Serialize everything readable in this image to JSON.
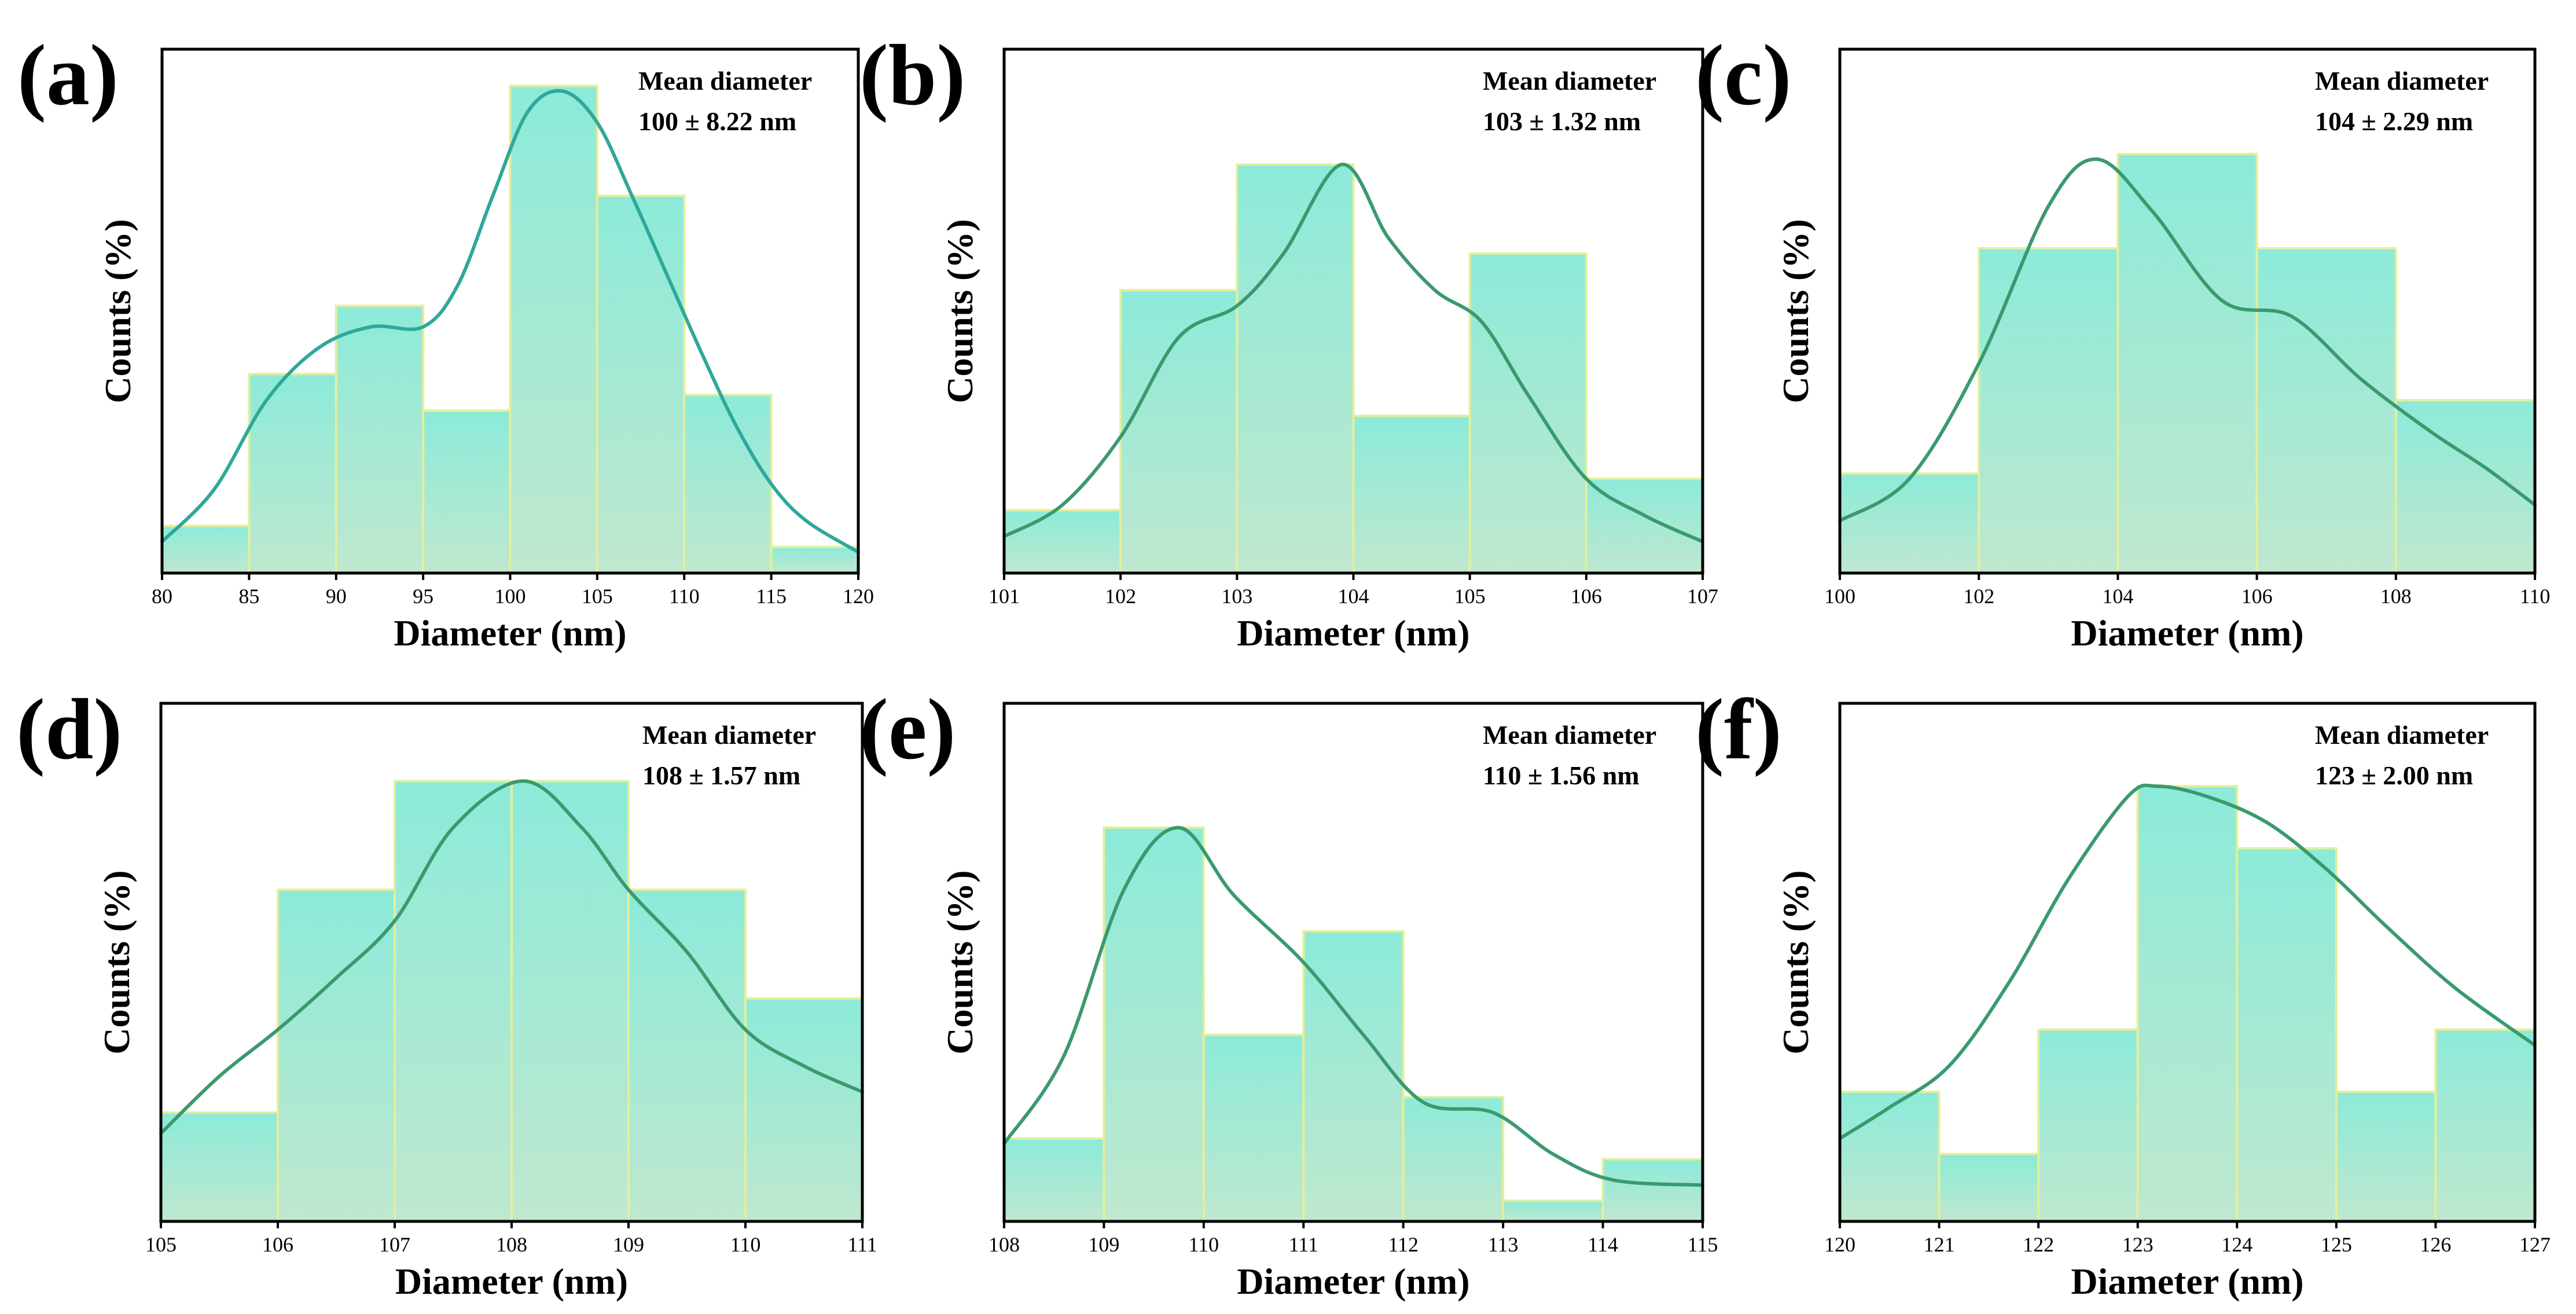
{
  "figure": {
    "bar_gradient_top": "#8cead9",
    "bar_gradient_bottom": "#bfe8cf",
    "bar_edge_color": "#e3ef9a",
    "frame_color": "#000000"
  },
  "chart_data": [
    {
      "type": "bar",
      "panel_label": "(a)",
      "xlabel": "Diameter (nm)",
      "ylabel": "Counts (%)",
      "annotation_title": "Mean diameter",
      "annotation_value": "100 ± 8.22 nm",
      "bin_edges": [
        80,
        85,
        90,
        95,
        100,
        105,
        110,
        115,
        120
      ],
      "values": [
        9,
        38,
        51,
        31,
        93,
        72,
        34,
        5
      ],
      "xlim": [
        80,
        120
      ],
      "ylim": [
        0,
        100
      ],
      "xticks": [
        "80",
        "85",
        "90",
        "95",
        "100",
        "105",
        "110",
        "115",
        "120"
      ],
      "curve": {
        "color": "#2ea89a",
        "x": [
          80,
          83,
          86,
          89,
          92,
          95,
          97,
          99,
          101,
          103,
          105,
          107,
          109,
          111,
          113,
          115,
          117,
          120
        ],
        "y": [
          6,
          16,
          33,
          43,
          47,
          47,
          55,
          72,
          88,
          92,
          86,
          72,
          57,
          42,
          28,
          17,
          10,
          4
        ]
      }
    },
    {
      "type": "bar",
      "panel_label": "(b)",
      "xlabel": "Diameter (nm)",
      "ylabel": "Counts (%)",
      "annotation_title": "Mean diameter",
      "annotation_value": "103 ± 1.32 nm",
      "bin_edges": [
        101,
        102,
        103,
        104,
        105,
        106,
        107
      ],
      "values": [
        12,
        54,
        78,
        30,
        61,
        18
      ],
      "xlim": [
        101,
        107
      ],
      "ylim": [
        0,
        100
      ],
      "xticks": [
        "101",
        "102",
        "103",
        "104",
        "105",
        "106",
        "107"
      ],
      "curve": {
        "color": "#3a9a6e",
        "x": [
          101,
          101.5,
          102,
          102.5,
          103,
          103.4,
          103.9,
          104.3,
          104.7,
          105.1,
          105.5,
          106,
          106.5,
          107
        ],
        "y": [
          7,
          13,
          26,
          45,
          51,
          61,
          78,
          64,
          54,
          48,
          34,
          18,
          11,
          6
        ]
      }
    },
    {
      "type": "bar",
      "panel_label": "(c)",
      "xlabel": "Diameter (nm)",
      "ylabel": "Counts (%)",
      "annotation_title": "Mean diameter",
      "annotation_value": "104 ± 2.29 nm",
      "bin_edges": [
        100,
        102,
        104,
        106,
        108,
        110
      ],
      "values": [
        19,
        62,
        80,
        62,
        33
      ],
      "xlim": [
        100,
        110
      ],
      "ylim": [
        0,
        100
      ],
      "xticks": [
        "100",
        "102",
        "104",
        "106",
        "108",
        "110"
      ],
      "curve": {
        "color": "#3a9a6e",
        "x": [
          100,
          101,
          102,
          103,
          103.7,
          104.5,
          105.5,
          106.5,
          107.5,
          108.5,
          109.3,
          110
        ],
        "y": [
          10,
          18,
          40,
          70,
          79,
          69,
          52,
          49,
          37,
          27,
          20,
          13
        ]
      }
    },
    {
      "type": "bar",
      "panel_label": "(d)",
      "xlabel": "Diameter (nm)",
      "ylabel": "Counts (%)",
      "annotation_title": "Mean diameter",
      "annotation_value": "108 ± 1.57 nm",
      "bin_edges": [
        105,
        106,
        107,
        108,
        109,
        110,
        111
      ],
      "values": [
        21,
        64,
        85,
        85,
        64,
        43
      ],
      "xlim": [
        105,
        111
      ],
      "ylim": [
        0,
        100
      ],
      "xticks": [
        "105",
        "106",
        "107",
        "108",
        "109",
        "110",
        "111"
      ],
      "curve": {
        "color": "#3a9a6e",
        "x": [
          105,
          105.5,
          106,
          106.5,
          107,
          107.5,
          108.1,
          108.6,
          109,
          109.5,
          110,
          110.5,
          111
        ],
        "y": [
          17,
          28,
          37,
          47,
          58,
          76,
          85,
          76,
          64,
          52,
          37,
          30,
          25
        ]
      }
    },
    {
      "type": "bar",
      "panel_label": "(e)",
      "xlabel": "Diameter (nm)",
      "ylabel": "Counts (%)",
      "annotation_title": "Mean diameter",
      "annotation_value": "110 ± 1.56 nm",
      "bin_edges": [
        108,
        109,
        110,
        111,
        112,
        113,
        114,
        115
      ],
      "values": [
        16,
        76,
        36,
        56,
        24,
        4,
        12
      ],
      "xlim": [
        108,
        115
      ],
      "ylim": [
        0,
        100
      ],
      "xticks": [
        "108",
        "109",
        "110",
        "111",
        "112",
        "113",
        "114",
        "115"
      ],
      "curve": {
        "color": "#3a9a6e",
        "x": [
          108,
          108.6,
          109.2,
          109.75,
          110.3,
          111,
          111.6,
          112.2,
          112.9,
          113.5,
          114.1,
          115
        ],
        "y": [
          15,
          32,
          64,
          76,
          63,
          50,
          36,
          23,
          21,
          13,
          8,
          7
        ]
      }
    },
    {
      "type": "bar",
      "panel_label": "(f)",
      "xlabel": "Diameter (nm)",
      "ylabel": "Counts (%)",
      "annotation_title": "Mean diameter",
      "annotation_value": "123 ± 2.00 nm",
      "bin_edges": [
        120,
        121,
        122,
        123,
        124,
        125,
        126,
        127
      ],
      "values": [
        25,
        13,
        37,
        84,
        72,
        25,
        37
      ],
      "xlim": [
        120,
        127
      ],
      "ylim": [
        0,
        100
      ],
      "xticks": [
        "120",
        "121",
        "122",
        "123",
        "124",
        "125",
        "126",
        "127"
      ],
      "curve": {
        "color": "#3a9a6e",
        "x": [
          120,
          120.5,
          121.1,
          121.7,
          122.3,
          122.9,
          123.2,
          123.7,
          124.3,
          124.9,
          125.5,
          126.2,
          127
        ],
        "y": [
          16,
          22,
          30,
          46,
          66,
          82,
          84,
          82,
          77,
          68,
          57,
          45,
          34
        ]
      }
    }
  ]
}
